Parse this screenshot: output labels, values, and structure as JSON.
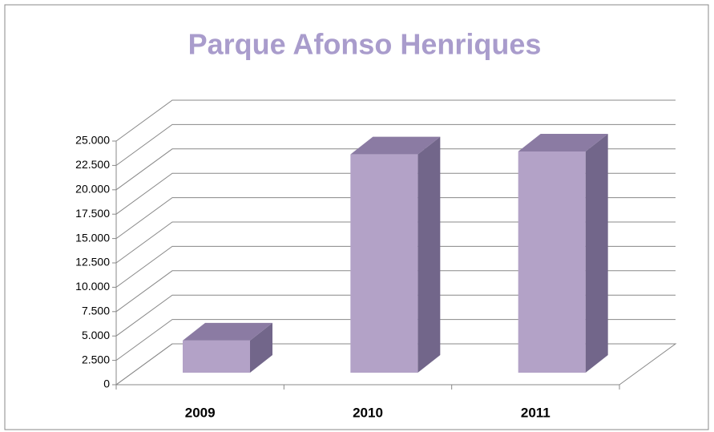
{
  "chart_data": {
    "type": "bar3d",
    "title": "Parque Afonso Henriques",
    "categories": [
      "2009",
      "2010",
      "2011"
    ],
    "values": [
      3300,
      22400,
      22700
    ],
    "color": "#b3a2c7",
    "side_color": "#72668a",
    "top_color": "#8b7ba3",
    "ylim": [
      0,
      25000
    ],
    "yticks": [
      0,
      {
        "value": 2500,
        "label": "2.500"
      },
      {
        "value": 5000,
        "label": "5.000"
      },
      {
        "value": 7500,
        "label": "7.500"
      },
      {
        "value": 10000,
        "label": "10.000"
      },
      {
        "value": 12500,
        "label": "12.500"
      },
      {
        "value": 15000,
        "label": "15.000"
      },
      {
        "value": 17500,
        "label": "17.500"
      },
      {
        "value": 20000,
        "label": "20.000"
      },
      {
        "value": 22500,
        "label": "22.500"
      },
      {
        "value": 25000,
        "label": "25.000"
      }
    ],
    "grid": true
  }
}
